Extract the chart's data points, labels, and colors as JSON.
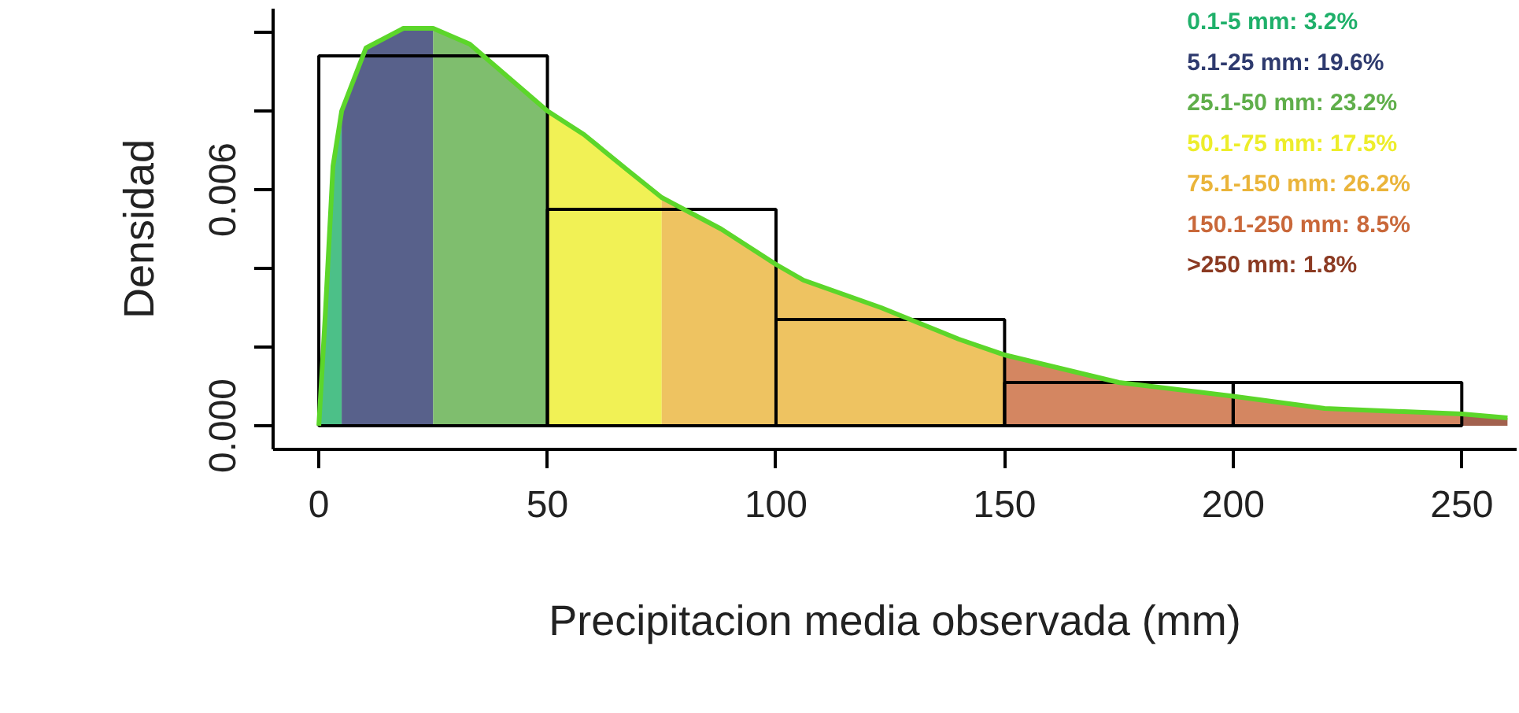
{
  "chart_data": {
    "type": "histogram",
    "xlabel": "Precipitacion media observada (mm)",
    "ylabel": "Densidad",
    "bins": [
      0,
      50,
      100,
      150,
      200,
      250
    ],
    "values": [
      0.0094,
      0.0055,
      0.0027,
      0.0011,
      0.0011
    ],
    "color": "#000000",
    "xlim": [
      -10,
      262
    ],
    "ylim": [
      -0.0006,
      0.0106
    ],
    "xticks": [
      0,
      50,
      100,
      150,
      200,
      250
    ],
    "yticks": [
      {
        "value": 0,
        "label": "0.000"
      },
      {
        "value": 0.002,
        "label": null
      },
      {
        "value": 0.004,
        "label": null
      },
      {
        "value": 0.006,
        "label": "0.006"
      },
      {
        "value": 0.008,
        "label": null
      },
      {
        "value": 0.01,
        "label": null
      }
    ],
    "legend": "top right",
    "grid": false,
    "series": [
      {
        "type": "area",
        "name": "0.1-5 mm:  3.2%",
        "color": "#1fb06a",
        "x": [
          0,
          1.4,
          3.1,
          5
        ],
        "values": [
          0,
          0.0028,
          0.0066,
          0.008
        ]
      },
      {
        "type": "area",
        "name": "5.1-25 mm:  19.6%",
        "color": "#2e3a6e",
        "x": [
          5,
          10.3,
          18.5,
          25
        ],
        "values": [
          0.008,
          0.0096,
          0.0101,
          0.0101
        ]
      },
      {
        "type": "area",
        "name": "25.1-50 mm:  23.2%",
        "color": "#5fae4a",
        "x": [
          25,
          33,
          41,
          50
        ],
        "values": [
          0.0101,
          0.0097,
          0.0089,
          0.008
        ]
      },
      {
        "type": "area",
        "name": "50.1-75 mm:   17.5%",
        "color": "#eded2a",
        "x": [
          50,
          58,
          67.5,
          75
        ],
        "values": [
          0.008,
          0.0074,
          0.0065,
          0.0058
        ]
      },
      {
        "type": "area",
        "name": "75.1-150 mm:   26.2%",
        "color": "#eab43a",
        "x": [
          75,
          88,
          100,
          106,
          123,
          140,
          150
        ],
        "values": [
          0.0058,
          0.005,
          0.0041,
          0.0037,
          0.003,
          0.0022,
          0.0018
        ]
      },
      {
        "type": "area",
        "name": "150.1-250 mm:  8.5%",
        "color": "#c9683a",
        "x": [
          150,
          175,
          200,
          220,
          250
        ],
        "values": [
          0.0018,
          0.0011,
          0.00075,
          0.00044,
          0.0003
        ]
      },
      {
        "type": "area",
        "name": ">250 mm:  1.8%",
        "color": "#8b3a22",
        "x": [
          250,
          260
        ],
        "values": [
          0.0003,
          0.0002
        ]
      },
      {
        "type": "line",
        "color": "#5cd62a",
        "x": [
          0,
          1.4,
          3.1,
          5,
          10.3,
          18.5,
          25,
          33,
          41,
          50,
          58,
          67.5,
          75,
          88,
          100,
          106,
          123,
          140,
          150,
          175,
          200,
          220,
          250,
          260
        ],
        "values": [
          0,
          0.0028,
          0.0066,
          0.008,
          0.0096,
          0.0101,
          0.0101,
          0.0097,
          0.0089,
          0.008,
          0.0074,
          0.0065,
          0.0058,
          0.005,
          0.0041,
          0.0037,
          0.003,
          0.0022,
          0.0018,
          0.0011,
          0.00075,
          0.00044,
          0.0003,
          0.0002
        ]
      }
    ]
  }
}
